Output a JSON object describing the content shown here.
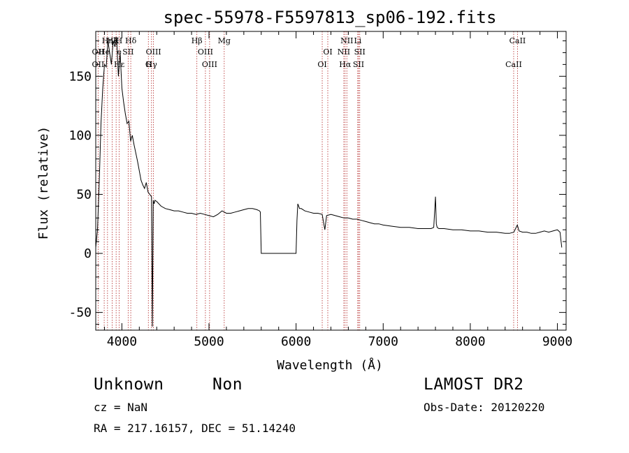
{
  "title": "spec-55978-F5597813_sp06-192.fits",
  "info": {
    "class": "Unknown",
    "subclass": "Non",
    "survey": "LAMOST DR2",
    "cz": "cz = NaN",
    "obsdate": "Obs-Date: 20120220",
    "radec": "RA = 217.16157, DEC =  51.14240"
  },
  "chart_data": {
    "type": "line",
    "title": "spec-55978-F5597813_sp06-192.fits",
    "xlabel": "Wavelength (Å)",
    "ylabel": "Flux (relative)",
    "xlim": [
      3700,
      9100
    ],
    "ylim": [
      -65,
      188
    ],
    "x_ticks": [
      4000,
      5000,
      6000,
      7000,
      8000,
      9000
    ],
    "y_ticks": [
      -50,
      0,
      50,
      100,
      150
    ],
    "grid": false,
    "line_color": "#000000",
    "marker_color": "#b22222",
    "spectral_lines": [
      {
        "label": "Hη",
        "wave": 3835,
        "row": 0
      },
      {
        "label": "Hζ",
        "wave": 3889,
        "row": 0
      },
      {
        "label": "K",
        "wave": 3934,
        "row": 0
      },
      {
        "label": "H",
        "wave": 3968,
        "row": 0
      },
      {
        "label": "Hδ",
        "wave": 4102,
        "row": 0
      },
      {
        "label": "Hβ",
        "wave": 4861,
        "row": 0
      },
      {
        "label": "Mg",
        "wave": 5175,
        "row": 0
      },
      {
        "label": "NII",
        "wave": 6583,
        "row": 0
      },
      {
        "label": "Li",
        "wave": 6708,
        "row": 0
      },
      {
        "label": "CaII",
        "wave": 8542,
        "row": 0
      },
      {
        "label": "OII",
        "wave": 3727,
        "row": 1
      },
      {
        "label": "He",
        "wave": 3797,
        "row": 1
      },
      {
        "label": "e",
        "wave": 3970,
        "row": 1
      },
      {
        "label": "SII",
        "wave": 4072,
        "row": 1
      },
      {
        "label": "OIII",
        "wave": 4363,
        "row": 1
      },
      {
        "label": "OIII",
        "wave": 4959,
        "row": 1
      },
      {
        "label": "OI",
        "wave": 6364,
        "row": 1
      },
      {
        "label": "NII",
        "wave": 6548,
        "row": 1
      },
      {
        "label": "SII",
        "wave": 6731,
        "row": 1
      },
      {
        "label": "OII",
        "wave": 3727,
        "row": 2
      },
      {
        "label": "Hε",
        "wave": 3970,
        "row": 2
      },
      {
        "label": "Hγ",
        "wave": 4340,
        "row": 2
      },
      {
        "label": "G",
        "wave": 4304,
        "row": 2
      },
      {
        "label": "OIII",
        "wave": 5007,
        "row": 2
      },
      {
        "label": "OI",
        "wave": 6300,
        "row": 2
      },
      {
        "label": "Hα",
        "wave": 6563,
        "row": 2
      },
      {
        "label": "SII",
        "wave": 6717,
        "row": 2
      },
      {
        "label": "CaII",
        "wave": 8498,
        "row": 2
      }
    ],
    "line_markers": [
      3727,
      3797,
      3835,
      3889,
      3934,
      3968,
      4072,
      4102,
      4304,
      4340,
      4363,
      4861,
      4959,
      5007,
      5175,
      6300,
      6364,
      6548,
      6563,
      6583,
      6708,
      6717,
      6731,
      8498,
      8542
    ],
    "series": [
      {
        "x": [
          3700,
          3720,
          3740,
          3760,
          3780,
          3800,
          3820,
          3840,
          3860,
          3880,
          3900,
          3920,
          3940,
          3960,
          3980,
          4000,
          4020,
          4040,
          4060,
          4080,
          4100,
          4120,
          4140,
          4160,
          4180,
          4200,
          4220,
          4240,
          4260,
          4280,
          4300,
          4320,
          4340,
          4350,
          4360,
          4370,
          4380,
          4400,
          4450,
          4500,
          4550,
          4600,
          4650,
          4700,
          4750,
          4800,
          4850,
          4900,
          4950,
          5000,
          5050,
          5100,
          5150,
          5200,
          5250,
          5300,
          5350,
          5400,
          5450,
          5500,
          5550,
          5580,
          5590,
          5600,
          5650,
          5700,
          5800,
          5900,
          6000,
          6010,
          6020,
          6030,
          6040,
          6060,
          6100,
          6150,
          6200,
          6250,
          6300,
          6330,
          6350,
          6400,
          6450,
          6500,
          6550,
          6600,
          6650,
          6700,
          6750,
          6800,
          6850,
          6900,
          6950,
          7000,
          7100,
          7200,
          7300,
          7400,
          7500,
          7550,
          7580,
          7600,
          7610,
          7620,
          7640,
          7700,
          7800,
          7900,
          8000,
          8100,
          8200,
          8300,
          8400,
          8450,
          8500,
          8540,
          8560,
          8600,
          8650,
          8700,
          8750,
          8800,
          8850,
          8900,
          8950,
          9000,
          9030,
          9050
        ],
        "y": [
          5,
          20,
          60,
          110,
          140,
          160,
          158,
          180,
          170,
          160,
          180,
          175,
          182,
          150,
          170,
          140,
          128,
          118,
          110,
          112,
          95,
          100,
          92,
          85,
          78,
          70,
          62,
          58,
          55,
          60,
          52,
          50,
          48,
          -62,
          45,
          42,
          45,
          44,
          40,
          38,
          37,
          36,
          36,
          35,
          34,
          34,
          33,
          34,
          33,
          32,
          31,
          33,
          36,
          34,
          34,
          35,
          36,
          37,
          38,
          38,
          37,
          36,
          35,
          0,
          0,
          0,
          0,
          0,
          0,
          28,
          42,
          40,
          38,
          38,
          36,
          35,
          34,
          34,
          33,
          20,
          32,
          33,
          32,
          31,
          30,
          30,
          29,
          29,
          28,
          27,
          26,
          25,
          25,
          24,
          23,
          22,
          22,
          21,
          21,
          21,
          22,
          48,
          25,
          22,
          21,
          21,
          20,
          20,
          19,
          19,
          18,
          18,
          17,
          17,
          18,
          24,
          19,
          18,
          18,
          17,
          17,
          18,
          19,
          18,
          19,
          20,
          18,
          5
        ]
      }
    ]
  }
}
